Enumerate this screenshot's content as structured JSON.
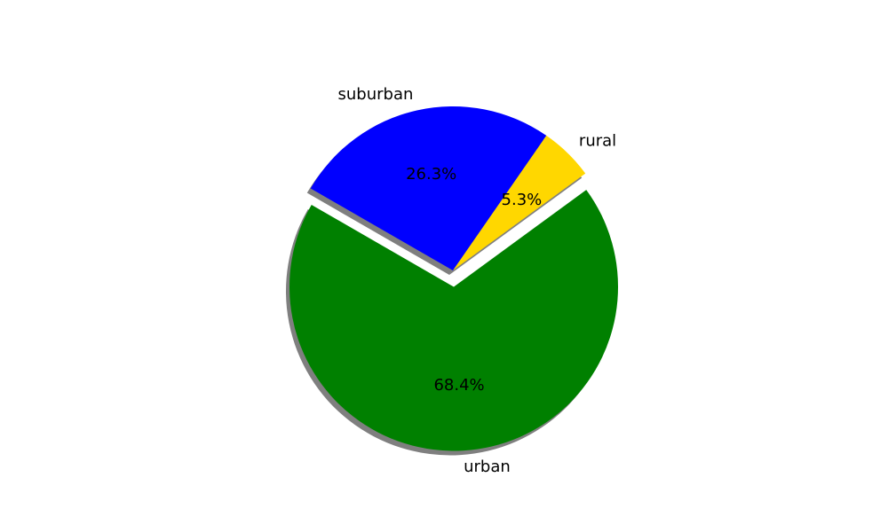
{
  "chart_data": {
    "type": "pie",
    "title": "",
    "slices": [
      {
        "label": "urban",
        "value": 68.4,
        "pct_label": "68.4%",
        "color": "#008000",
        "explode": 0.1
      },
      {
        "label": "rural",
        "value": 5.3,
        "pct_label": "5.3%",
        "color": "#ffd700",
        "explode": 0
      },
      {
        "label": "suburban",
        "value": 26.3,
        "pct_label": "26.3%",
        "color": "#0000ff",
        "explode": 0
      }
    ],
    "start_angle_deg": 150,
    "shadow": true,
    "legend": "none"
  }
}
